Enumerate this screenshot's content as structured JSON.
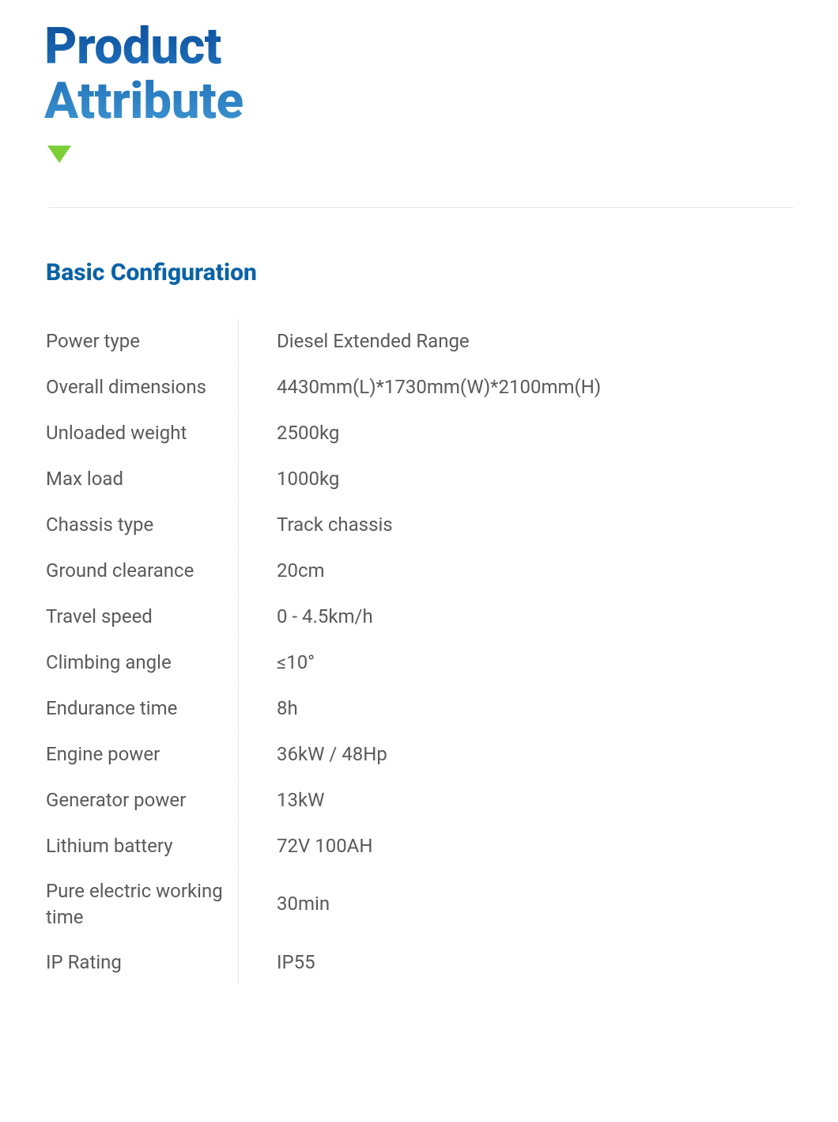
{
  "header": {
    "title_line1": "Product",
    "title_line2": "Attribute",
    "triangle_color": "#7dcf3a",
    "title_gradient_top": "#0b4d9a",
    "title_gradient_mid": "#1e6fb9",
    "title_gradient_bottom": "#3e94cf"
  },
  "section": {
    "heading": "Basic Configuration",
    "heading_color": "#0b63a6",
    "text_color": "#5a5a5a",
    "divider_color": "#e6e6e6",
    "label_fontsize": 24,
    "value_fontsize": 24,
    "rows": [
      {
        "label": "Power type",
        "value": "Diesel Extended Range"
      },
      {
        "label": "Overall dimensions",
        "value": "4430mm(L)*1730mm(W)*2100mm(H)"
      },
      {
        "label": "Unloaded weight",
        "value": "2500kg"
      },
      {
        "label": "Max load",
        "value": "1000kg"
      },
      {
        "label": "Chassis type",
        "value": "Track chassis"
      },
      {
        "label": "Ground clearance",
        "value": "20cm"
      },
      {
        "label": "Travel speed",
        "value": "0 - 4.5km/h"
      },
      {
        "label": "Climbing angle",
        "value": "≤10°"
      },
      {
        "label": "Endurance time",
        "value": "8h"
      },
      {
        "label": "Engine power",
        "value": "36kW / 48Hp"
      },
      {
        "label": "Generator power",
        "value": "13kW"
      },
      {
        "label": "Lithium battery",
        "value": "72V 100AH"
      },
      {
        "label": "Pure electric working time",
        "value": "30min"
      },
      {
        "label": "IP Rating",
        "value": "IP55"
      }
    ]
  }
}
